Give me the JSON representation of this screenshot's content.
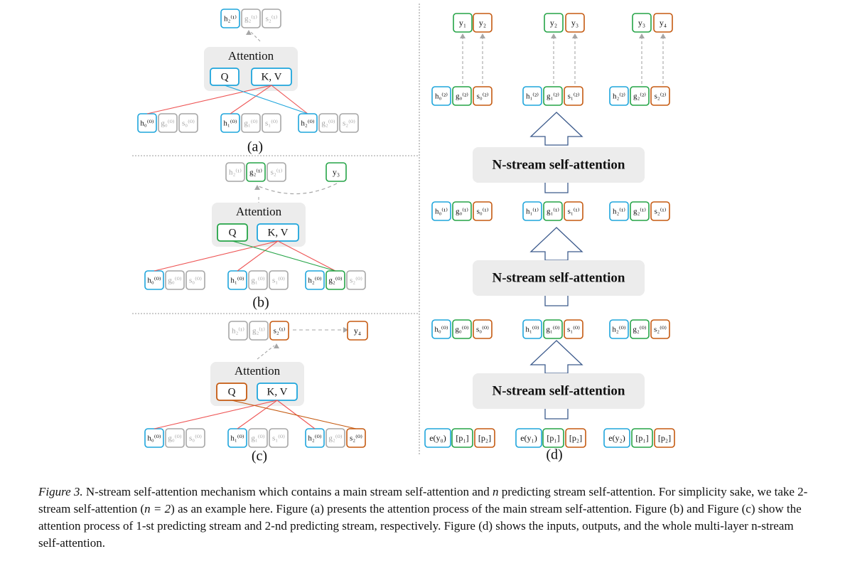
{
  "colors": {
    "blue": "#1ea5dc",
    "green": "#25a447",
    "orange": "#c55a11",
    "gray": "#a6a6a6",
    "panel": "#ececec",
    "arrow": "#3c5a8c",
    "red_line": "#ee5555"
  },
  "panel_a": {
    "top_nodes": [
      "h₂⁽¹⁾",
      "g₂⁽¹⁾",
      "s₂⁽¹⁾"
    ],
    "attention_label": "Attention",
    "q_label": "Q",
    "kv_label": "K, V",
    "bottom_nodes": [
      [
        "h₀⁽⁰⁾",
        "g₀⁽⁰⁾",
        "s₀⁽⁰⁾"
      ],
      [
        "h₁⁽⁰⁾",
        "g₁⁽⁰⁾",
        "s₁⁽⁰⁾"
      ],
      [
        "h₂⁽⁰⁾",
        "g₂⁽⁰⁾",
        "s₂⁽⁰⁾"
      ]
    ],
    "caption": "(a)"
  },
  "panel_b": {
    "top_nodes": [
      "h₂⁽¹⁾",
      "g₂⁽¹⁾",
      "s₂⁽¹⁾"
    ],
    "output": "y₃",
    "attention_label": "Attention",
    "q_label": "Q",
    "kv_label": "K, V",
    "bottom_nodes": [
      [
        "h₀⁽⁰⁾",
        "g₀⁽⁰⁾",
        "s₀⁽⁰⁾"
      ],
      [
        "h₁⁽⁰⁾",
        "g₁⁽⁰⁾",
        "s₁⁽⁰⁾"
      ],
      [
        "h₂⁽⁰⁾",
        "g₂⁽⁰⁾",
        "s₂⁽⁰⁾"
      ]
    ],
    "caption": "(b)"
  },
  "panel_c": {
    "top_nodes": [
      "h₂⁽¹⁾",
      "g₂⁽¹⁾",
      "s₂⁽¹⁾"
    ],
    "output": "y₄",
    "attention_label": "Attention",
    "q_label": "Q",
    "kv_label": "K, V",
    "bottom_nodes": [
      [
        "h₀⁽⁰⁾",
        "g₀⁽⁰⁾",
        "s₀⁽⁰⁾"
      ],
      [
        "h₁⁽⁰⁾",
        "g₁⁽⁰⁾",
        "s₁⁽⁰⁾"
      ],
      [
        "h₂⁽⁰⁾",
        "g₂⁽⁰⁾",
        "s₂⁽⁰⁾"
      ]
    ],
    "caption": "(c)"
  },
  "panel_d": {
    "outputs": [
      [
        "y₁",
        "y₂"
      ],
      [
        "y₂",
        "y₃"
      ],
      [
        "y₃",
        "y₄"
      ]
    ],
    "layer2_nodes": [
      [
        "h₀⁽²⁾",
        "g₀⁽²⁾",
        "s₀⁽²⁾"
      ],
      [
        "h₁⁽²⁾",
        "g₁⁽²⁾",
        "s₁⁽²⁾"
      ],
      [
        "h₂⁽²⁾",
        "g₂⁽²⁾",
        "s₂⁽²⁾"
      ]
    ],
    "layer1_nodes": [
      [
        "h₀⁽¹⁾",
        "g₀⁽¹⁾",
        "s₀⁽¹⁾"
      ],
      [
        "h₁⁽¹⁾",
        "g₁⁽¹⁾",
        "s₁⁽¹⁾"
      ],
      [
        "h₂⁽¹⁾",
        "g₂⁽¹⁾",
        "s₂⁽¹⁾"
      ]
    ],
    "layer0_nodes": [
      [
        "h₀⁽⁰⁾",
        "g₀⁽⁰⁾",
        "s₀⁽⁰⁾"
      ],
      [
        "h₁⁽⁰⁾",
        "g₁⁽⁰⁾",
        "s₁⁽⁰⁾"
      ],
      [
        "h₂⁽⁰⁾",
        "g₂⁽⁰⁾",
        "s₂⁽⁰⁾"
      ]
    ],
    "inputs": [
      [
        "e(y₀)",
        "[p₁]",
        "[p₂]"
      ],
      [
        "e(y₁)",
        "[p₁]",
        "[p₂]"
      ],
      [
        "e(y₂)",
        "[p₁]",
        "[p₂]"
      ]
    ],
    "block_label": "N-stream self-attention",
    "caption": "(d)"
  },
  "caption": {
    "label": "Figure 3.",
    "text_1": " N-stream self-attention mechanism which contains a main stream self-attention and ",
    "math_n": "n",
    "text_2": " predicting stream self-attention. For simplicity sake, we take 2-stream self-attention (",
    "math_eq": "n = 2",
    "text_3": ") as an example here. Figure (a) presents the attention process of the main stream self-attention. Figure (b) and Figure (c) show the attention process of 1-st predicting stream and 2-nd predicting stream, respectively. Figure (d) shows the inputs, outputs, and the whole multi-layer n-stream self-attention."
  }
}
